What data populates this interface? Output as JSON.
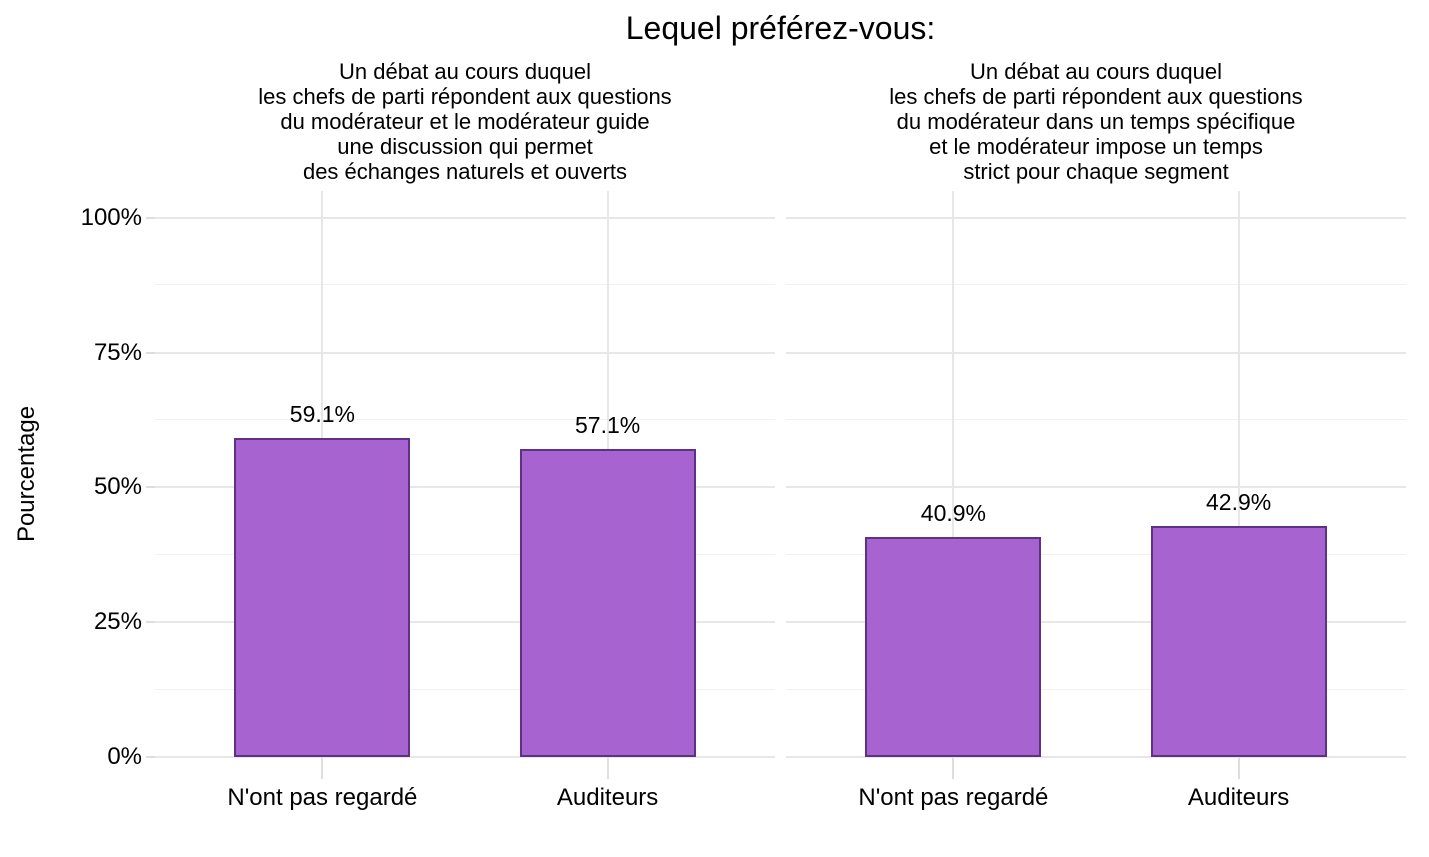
{
  "chart_data": {
    "type": "bar",
    "title": "Lequel préférez-vous:",
    "ylabel": "Pourcentage",
    "xlabel": "",
    "legend": "none",
    "grid": "major and minor horizontal lines, vertical major lines at category centers",
    "ylim": [
      0,
      105
    ],
    "y_tick_values": [
      0,
      25,
      50,
      75,
      100
    ],
    "y_tick_labels": [
      "0%",
      "25%",
      "50%",
      "75%",
      "100%"
    ],
    "categories": [
      "N'ont pas regardé",
      "Auditeurs"
    ],
    "facets": [
      {
        "strip_label": "Un débat au cours duquel\nles chefs de parti répondent aux questions\ndu modérateur et le modérateur guide\nune discussion qui permet\ndes échanges naturels et ouverts",
        "series": [
          {
            "category": "N'ont pas regardé",
            "value": 59.1,
            "label": "59.1%"
          },
          {
            "category": "Auditeurs",
            "value": 57.1,
            "label": "57.1%"
          }
        ]
      },
      {
        "strip_label": "Un débat au cours duquel\nles chefs de parti répondent aux questions\ndu modérateur dans un temps spécifique\net le modérateur impose un temps\nstrict pour chaque segment",
        "series": [
          {
            "category": "N'ont pas regardé",
            "value": 40.9,
            "label": "40.9%"
          },
          {
            "category": "Auditeurs",
            "value": 42.9,
            "label": "42.9%"
          }
        ]
      }
    ],
    "colors": {
      "bar_fill": "#a764d1",
      "bar_stroke": "#5f3182",
      "grid_major": "#e7e7e7",
      "grid_minor": "#f1f1f1",
      "tick": "#dedede",
      "text": "#000000",
      "background": "#ffffff"
    }
  }
}
